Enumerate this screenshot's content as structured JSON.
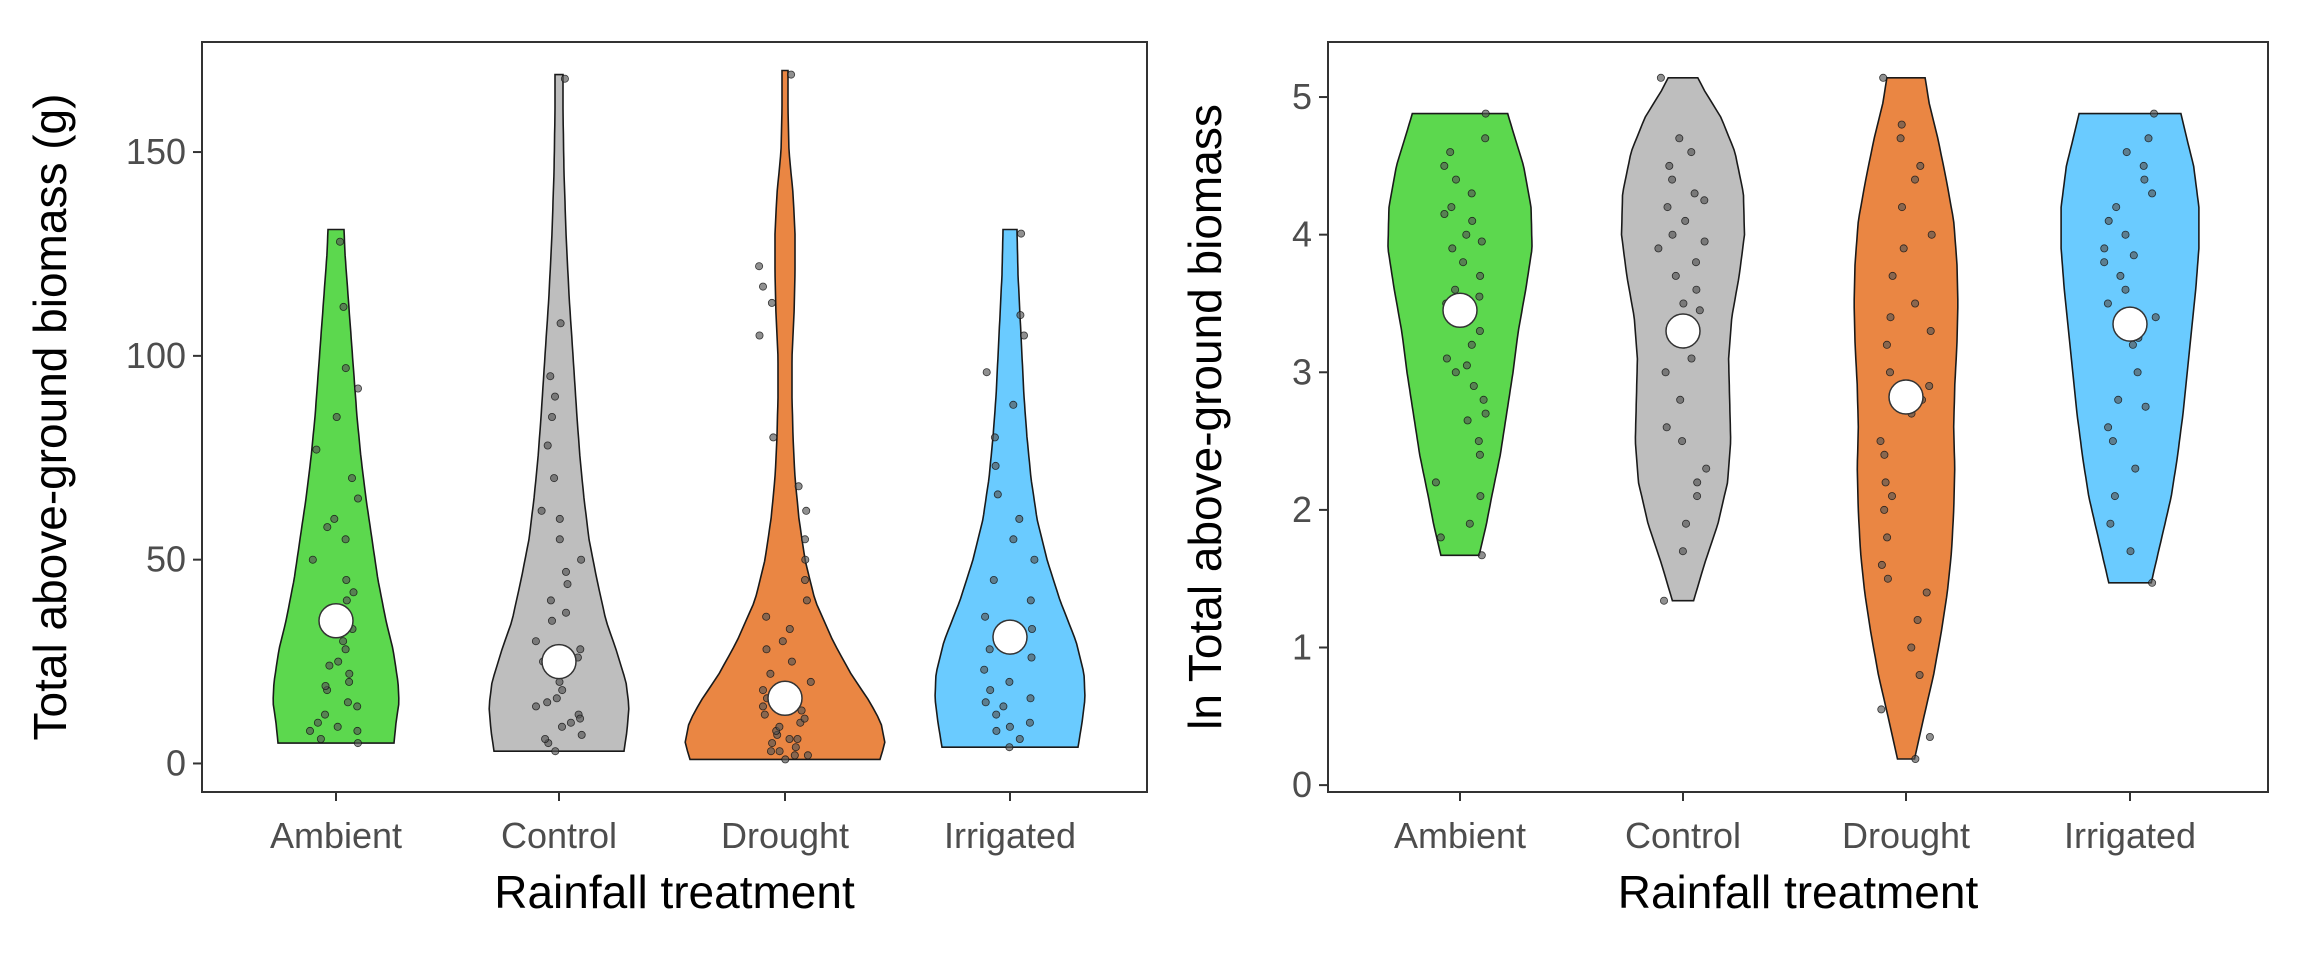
{
  "chart_data": [
    {
      "type": "violin",
      "xlabel": "Rainfall treatment",
      "ylabel": "Total above-ground biomass (g)",
      "categories": [
        "Ambient",
        "Control",
        "Drought",
        "Irrigated"
      ],
      "colors": [
        "#5CD84E",
        "#BEBEBE",
        "#EA8643",
        "#6ACBFF"
      ],
      "ylim": [
        -7,
        177
      ],
      "yticks": [
        0,
        50,
        100,
        150
      ],
      "ytick_labels": [
        "0",
        "50",
        "100",
        "150"
      ],
      "grid": false,
      "legend": "none",
      "means": [
        35,
        25,
        16,
        31
      ],
      "ranges": [
        [
          5,
          131
        ],
        [
          3,
          169
        ],
        [
          1,
          170
        ],
        [
          4,
          131
        ]
      ],
      "density_profiles": [
        [
          [
            5,
            0.58
          ],
          [
            10,
            0.6
          ],
          [
            15,
            0.63
          ],
          [
            20,
            0.62
          ],
          [
            28,
            0.57
          ],
          [
            35,
            0.5
          ],
          [
            45,
            0.42
          ],
          [
            55,
            0.36
          ],
          [
            65,
            0.3
          ],
          [
            75,
            0.25
          ],
          [
            85,
            0.21
          ],
          [
            95,
            0.18
          ],
          [
            105,
            0.15
          ],
          [
            115,
            0.12
          ],
          [
            125,
            0.09
          ],
          [
            131,
            0.08
          ]
        ],
        [
          [
            3,
            0.65
          ],
          [
            8,
            0.68
          ],
          [
            14,
            0.7
          ],
          [
            20,
            0.67
          ],
          [
            28,
            0.57
          ],
          [
            35,
            0.47
          ],
          [
            45,
            0.38
          ],
          [
            55,
            0.3
          ],
          [
            65,
            0.25
          ],
          [
            75,
            0.21
          ],
          [
            85,
            0.18
          ],
          [
            100,
            0.14
          ],
          [
            115,
            0.1
          ],
          [
            130,
            0.07
          ],
          [
            145,
            0.05
          ],
          [
            160,
            0.04
          ],
          [
            169,
            0.04
          ]
        ],
        [
          [
            1,
            0.95
          ],
          [
            5,
            1.0
          ],
          [
            10,
            0.96
          ],
          [
            15,
            0.85
          ],
          [
            22,
            0.66
          ],
          [
            30,
            0.48
          ],
          [
            40,
            0.3
          ],
          [
            50,
            0.2
          ],
          [
            60,
            0.14
          ],
          [
            70,
            0.1
          ],
          [
            80,
            0.08
          ],
          [
            90,
            0.07
          ],
          [
            100,
            0.07
          ],
          [
            110,
            0.09
          ],
          [
            120,
            0.1
          ],
          [
            130,
            0.1
          ],
          [
            140,
            0.08
          ],
          [
            150,
            0.04
          ],
          [
            160,
            0.03
          ],
          [
            170,
            0.03
          ]
        ],
        [
          [
            4,
            0.68
          ],
          [
            10,
            0.72
          ],
          [
            16,
            0.75
          ],
          [
            22,
            0.74
          ],
          [
            30,
            0.66
          ],
          [
            40,
            0.5
          ],
          [
            50,
            0.37
          ],
          [
            60,
            0.27
          ],
          [
            70,
            0.21
          ],
          [
            80,
            0.17
          ],
          [
            90,
            0.14
          ],
          [
            100,
            0.12
          ],
          [
            110,
            0.1
          ],
          [
            120,
            0.08
          ],
          [
            131,
            0.07
          ]
        ]
      ],
      "points": [
        [
          8,
          5,
          12,
          6,
          15,
          9,
          18,
          20,
          22,
          25,
          28,
          30,
          33,
          35,
          38,
          40,
          45,
          50,
          55,
          60,
          65,
          70,
          77,
          85,
          92,
          97,
          112,
          128,
          8,
          14,
          24,
          33,
          42,
          58,
          10,
          19
        ],
        [
          3,
          5,
          7,
          9,
          10,
          12,
          14,
          15,
          18,
          20,
          22,
          25,
          28,
          30,
          35,
          40,
          44,
          50,
          55,
          62,
          70,
          78,
          85,
          90,
          95,
          108,
          168,
          6,
          11,
          16,
          26,
          37,
          47,
          60
        ],
        [
          1,
          2,
          2,
          3,
          4,
          5,
          6,
          7,
          8,
          9,
          10,
          11,
          12,
          13,
          14,
          15,
          16,
          18,
          20,
          22,
          25,
          28,
          30,
          33,
          36,
          40,
          45,
          50,
          55,
          62,
          68,
          80,
          105,
          113,
          117,
          122,
          169,
          3,
          6
        ],
        [
          4,
          6,
          8,
          10,
          12,
          14,
          16,
          18,
          20,
          23,
          26,
          30,
          33,
          36,
          40,
          45,
          50,
          55,
          60,
          66,
          73,
          80,
          88,
          96,
          105,
          110,
          130,
          9,
          15,
          28
        ]
      ]
    },
    {
      "type": "violin",
      "xlabel": "Rainfall treatment",
      "ylabel": "ln Total above-ground biomass",
      "categories": [
        "Ambient",
        "Control",
        "Drought",
        "Irrigated"
      ],
      "colors": [
        "#5CD84E",
        "#BEBEBE",
        "#EA8643",
        "#6ACBFF"
      ],
      "ylim": [
        -0.05,
        5.4
      ],
      "yticks": [
        0,
        1,
        2,
        3,
        4,
        5
      ],
      "ytick_labels": [
        "0",
        "1",
        "2",
        "3",
        "4",
        "5"
      ],
      "grid": false,
      "legend": "none",
      "means": [
        3.45,
        3.3,
        2.82,
        3.35
      ],
      "ranges": [
        [
          1.67,
          4.88
        ],
        [
          1.34,
          5.14
        ],
        [
          0.19,
          5.14
        ],
        [
          1.47,
          4.88
        ]
      ],
      "density_profiles": [
        [
          [
            1.67,
            0.18
          ],
          [
            1.9,
            0.25
          ],
          [
            2.1,
            0.3
          ],
          [
            2.4,
            0.38
          ],
          [
            2.7,
            0.44
          ],
          [
            3.0,
            0.5
          ],
          [
            3.3,
            0.55
          ],
          [
            3.6,
            0.62
          ],
          [
            3.9,
            0.68
          ],
          [
            4.2,
            0.67
          ],
          [
            4.5,
            0.6
          ],
          [
            4.75,
            0.5
          ],
          [
            4.88,
            0.45
          ]
        ],
        [
          [
            1.34,
            0.1
          ],
          [
            1.6,
            0.2
          ],
          [
            1.9,
            0.33
          ],
          [
            2.2,
            0.42
          ],
          [
            2.5,
            0.45
          ],
          [
            2.8,
            0.44
          ],
          [
            3.1,
            0.43
          ],
          [
            3.4,
            0.46
          ],
          [
            3.7,
            0.53
          ],
          [
            4.0,
            0.58
          ],
          [
            4.3,
            0.57
          ],
          [
            4.6,
            0.49
          ],
          [
            4.85,
            0.36
          ],
          [
            5.05,
            0.2
          ],
          [
            5.14,
            0.14
          ]
        ],
        [
          [
            0.19,
            0.08
          ],
          [
            0.5,
            0.17
          ],
          [
            0.8,
            0.26
          ],
          [
            1.1,
            0.33
          ],
          [
            1.4,
            0.39
          ],
          [
            1.7,
            0.43
          ],
          [
            2.0,
            0.45
          ],
          [
            2.3,
            0.46
          ],
          [
            2.6,
            0.45
          ],
          [
            2.9,
            0.46
          ],
          [
            3.2,
            0.48
          ],
          [
            3.5,
            0.49
          ],
          [
            3.8,
            0.48
          ],
          [
            4.1,
            0.45
          ],
          [
            4.4,
            0.38
          ],
          [
            4.7,
            0.3
          ],
          [
            4.95,
            0.22
          ],
          [
            5.14,
            0.18
          ]
        ],
        [
          [
            1.47,
            0.2
          ],
          [
            1.8,
            0.3
          ],
          [
            2.1,
            0.39
          ],
          [
            2.4,
            0.45
          ],
          [
            2.7,
            0.5
          ],
          [
            3.0,
            0.54
          ],
          [
            3.3,
            0.58
          ],
          [
            3.6,
            0.62
          ],
          [
            3.9,
            0.65
          ],
          [
            4.2,
            0.65
          ],
          [
            4.5,
            0.6
          ],
          [
            4.75,
            0.52
          ],
          [
            4.88,
            0.48
          ]
        ]
      ],
      "points": [
        [
          1.67,
          1.8,
          1.9,
          2.1,
          2.2,
          2.4,
          2.5,
          2.7,
          2.8,
          2.9,
          3.0,
          3.1,
          3.2,
          3.3,
          3.4,
          3.5,
          3.6,
          3.7,
          3.8,
          3.9,
          4.0,
          4.1,
          4.2,
          4.3,
          4.4,
          4.5,
          4.6,
          4.7,
          4.88,
          3.05,
          3.55,
          3.95,
          4.15,
          2.65
        ],
        [
          1.34,
          1.7,
          1.9,
          2.1,
          2.3,
          2.5,
          2.6,
          2.8,
          3.0,
          3.1,
          3.2,
          3.3,
          3.5,
          3.6,
          3.7,
          3.8,
          3.9,
          4.0,
          4.1,
          4.2,
          4.3,
          4.4,
          4.5,
          4.6,
          4.7,
          5.14,
          2.2,
          3.45,
          3.95,
          4.25
        ],
        [
          0.19,
          0.35,
          0.55,
          0.8,
          1.0,
          1.2,
          1.4,
          1.6,
          1.8,
          2.0,
          2.2,
          2.4,
          2.5,
          2.7,
          2.9,
          3.0,
          3.2,
          3.4,
          3.5,
          3.7,
          3.9,
          4.0,
          4.2,
          4.4,
          4.5,
          4.7,
          4.8,
          5.14,
          2.1,
          2.8,
          3.3,
          1.5
        ],
        [
          1.47,
          1.7,
          1.9,
          2.1,
          2.3,
          2.5,
          2.6,
          2.8,
          3.0,
          3.2,
          3.3,
          3.4,
          3.5,
          3.6,
          3.7,
          3.8,
          3.9,
          4.0,
          4.1,
          4.2,
          4.3,
          4.4,
          4.5,
          4.6,
          4.7,
          4.88,
          2.75,
          3.25,
          3.85
        ]
      ]
    }
  ]
}
